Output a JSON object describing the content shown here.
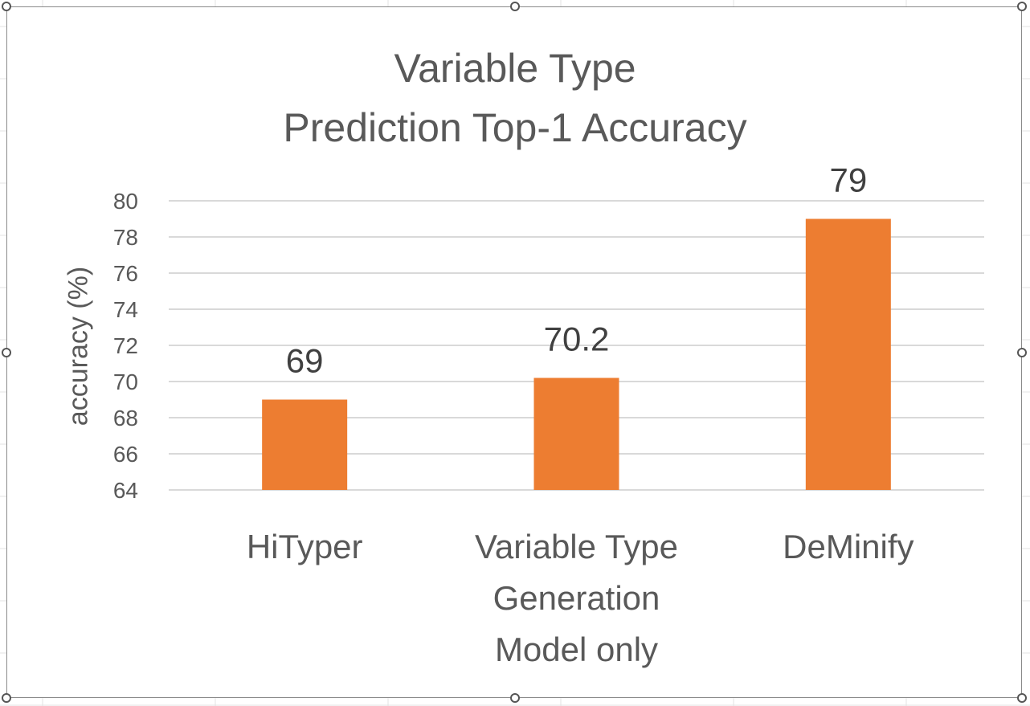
{
  "chart_data": {
    "type": "bar",
    "title_lines": [
      "Variable Type",
      "Prediction Top-1 Accuracy"
    ],
    "xlabel": "",
    "ylabel": "accuracy (%)",
    "categories": [
      [
        "HiTyper"
      ],
      [
        "Variable Type",
        "Generation",
        "Model only"
      ],
      [
        "DeMinify"
      ]
    ],
    "values": [
      69,
      70.2,
      79
    ],
    "data_labels": [
      "69",
      "70.2",
      "79"
    ],
    "ylim": [
      64,
      80
    ],
    "yticks": [
      64,
      66,
      68,
      70,
      72,
      74,
      76,
      78,
      80
    ],
    "grid": true,
    "legend": "none",
    "bar_color": "#ED7D31",
    "grid_color": "#D9D9D9"
  }
}
